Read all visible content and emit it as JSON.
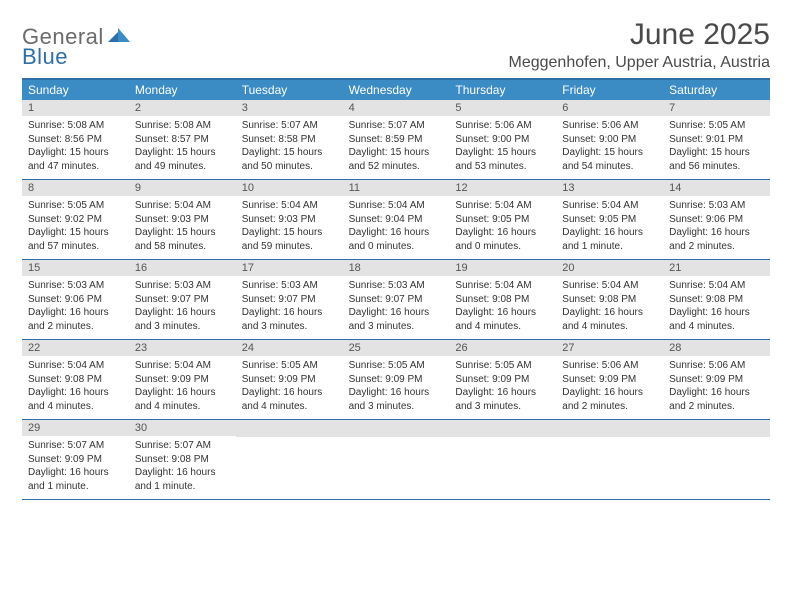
{
  "brand": {
    "word1": "General",
    "word2": "Blue"
  },
  "colors": {
    "accent": "#3b8bc4",
    "accent_dark": "#2f6fa8",
    "header_text": "#4a4a4a",
    "daynum_bg": "#e3e3e3",
    "body_text": "#333333"
  },
  "title": "June 2025",
  "location": "Meggenhofen, Upper Austria, Austria",
  "weekdays": [
    "Sunday",
    "Monday",
    "Tuesday",
    "Wednesday",
    "Thursday",
    "Friday",
    "Saturday"
  ],
  "weeks": [
    [
      {
        "n": "1",
        "sunrise": "Sunrise: 5:08 AM",
        "sunset": "Sunset: 8:56 PM",
        "day1": "Daylight: 15 hours",
        "day2": "and 47 minutes."
      },
      {
        "n": "2",
        "sunrise": "Sunrise: 5:08 AM",
        "sunset": "Sunset: 8:57 PM",
        "day1": "Daylight: 15 hours",
        "day2": "and 49 minutes."
      },
      {
        "n": "3",
        "sunrise": "Sunrise: 5:07 AM",
        "sunset": "Sunset: 8:58 PM",
        "day1": "Daylight: 15 hours",
        "day2": "and 50 minutes."
      },
      {
        "n": "4",
        "sunrise": "Sunrise: 5:07 AM",
        "sunset": "Sunset: 8:59 PM",
        "day1": "Daylight: 15 hours",
        "day2": "and 52 minutes."
      },
      {
        "n": "5",
        "sunrise": "Sunrise: 5:06 AM",
        "sunset": "Sunset: 9:00 PM",
        "day1": "Daylight: 15 hours",
        "day2": "and 53 minutes."
      },
      {
        "n": "6",
        "sunrise": "Sunrise: 5:06 AM",
        "sunset": "Sunset: 9:00 PM",
        "day1": "Daylight: 15 hours",
        "day2": "and 54 minutes."
      },
      {
        "n": "7",
        "sunrise": "Sunrise: 5:05 AM",
        "sunset": "Sunset: 9:01 PM",
        "day1": "Daylight: 15 hours",
        "day2": "and 56 minutes."
      }
    ],
    [
      {
        "n": "8",
        "sunrise": "Sunrise: 5:05 AM",
        "sunset": "Sunset: 9:02 PM",
        "day1": "Daylight: 15 hours",
        "day2": "and 57 minutes."
      },
      {
        "n": "9",
        "sunrise": "Sunrise: 5:04 AM",
        "sunset": "Sunset: 9:03 PM",
        "day1": "Daylight: 15 hours",
        "day2": "and 58 minutes."
      },
      {
        "n": "10",
        "sunrise": "Sunrise: 5:04 AM",
        "sunset": "Sunset: 9:03 PM",
        "day1": "Daylight: 15 hours",
        "day2": "and 59 minutes."
      },
      {
        "n": "11",
        "sunrise": "Sunrise: 5:04 AM",
        "sunset": "Sunset: 9:04 PM",
        "day1": "Daylight: 16 hours",
        "day2": "and 0 minutes."
      },
      {
        "n": "12",
        "sunrise": "Sunrise: 5:04 AM",
        "sunset": "Sunset: 9:05 PM",
        "day1": "Daylight: 16 hours",
        "day2": "and 0 minutes."
      },
      {
        "n": "13",
        "sunrise": "Sunrise: 5:04 AM",
        "sunset": "Sunset: 9:05 PM",
        "day1": "Daylight: 16 hours",
        "day2": "and 1 minute."
      },
      {
        "n": "14",
        "sunrise": "Sunrise: 5:03 AM",
        "sunset": "Sunset: 9:06 PM",
        "day1": "Daylight: 16 hours",
        "day2": "and 2 minutes."
      }
    ],
    [
      {
        "n": "15",
        "sunrise": "Sunrise: 5:03 AM",
        "sunset": "Sunset: 9:06 PM",
        "day1": "Daylight: 16 hours",
        "day2": "and 2 minutes."
      },
      {
        "n": "16",
        "sunrise": "Sunrise: 5:03 AM",
        "sunset": "Sunset: 9:07 PM",
        "day1": "Daylight: 16 hours",
        "day2": "and 3 minutes."
      },
      {
        "n": "17",
        "sunrise": "Sunrise: 5:03 AM",
        "sunset": "Sunset: 9:07 PM",
        "day1": "Daylight: 16 hours",
        "day2": "and 3 minutes."
      },
      {
        "n": "18",
        "sunrise": "Sunrise: 5:03 AM",
        "sunset": "Sunset: 9:07 PM",
        "day1": "Daylight: 16 hours",
        "day2": "and 3 minutes."
      },
      {
        "n": "19",
        "sunrise": "Sunrise: 5:04 AM",
        "sunset": "Sunset: 9:08 PM",
        "day1": "Daylight: 16 hours",
        "day2": "and 4 minutes."
      },
      {
        "n": "20",
        "sunrise": "Sunrise: 5:04 AM",
        "sunset": "Sunset: 9:08 PM",
        "day1": "Daylight: 16 hours",
        "day2": "and 4 minutes."
      },
      {
        "n": "21",
        "sunrise": "Sunrise: 5:04 AM",
        "sunset": "Sunset: 9:08 PM",
        "day1": "Daylight: 16 hours",
        "day2": "and 4 minutes."
      }
    ],
    [
      {
        "n": "22",
        "sunrise": "Sunrise: 5:04 AM",
        "sunset": "Sunset: 9:08 PM",
        "day1": "Daylight: 16 hours",
        "day2": "and 4 minutes."
      },
      {
        "n": "23",
        "sunrise": "Sunrise: 5:04 AM",
        "sunset": "Sunset: 9:09 PM",
        "day1": "Daylight: 16 hours",
        "day2": "and 4 minutes."
      },
      {
        "n": "24",
        "sunrise": "Sunrise: 5:05 AM",
        "sunset": "Sunset: 9:09 PM",
        "day1": "Daylight: 16 hours",
        "day2": "and 4 minutes."
      },
      {
        "n": "25",
        "sunrise": "Sunrise: 5:05 AM",
        "sunset": "Sunset: 9:09 PM",
        "day1": "Daylight: 16 hours",
        "day2": "and 3 minutes."
      },
      {
        "n": "26",
        "sunrise": "Sunrise: 5:05 AM",
        "sunset": "Sunset: 9:09 PM",
        "day1": "Daylight: 16 hours",
        "day2": "and 3 minutes."
      },
      {
        "n": "27",
        "sunrise": "Sunrise: 5:06 AM",
        "sunset": "Sunset: 9:09 PM",
        "day1": "Daylight: 16 hours",
        "day2": "and 2 minutes."
      },
      {
        "n": "28",
        "sunrise": "Sunrise: 5:06 AM",
        "sunset": "Sunset: 9:09 PM",
        "day1": "Daylight: 16 hours",
        "day2": "and 2 minutes."
      }
    ],
    [
      {
        "n": "29",
        "sunrise": "Sunrise: 5:07 AM",
        "sunset": "Sunset: 9:09 PM",
        "day1": "Daylight: 16 hours",
        "day2": "and 1 minute."
      },
      {
        "n": "30",
        "sunrise": "Sunrise: 5:07 AM",
        "sunset": "Sunset: 9:08 PM",
        "day1": "Daylight: 16 hours",
        "day2": "and 1 minute."
      },
      null,
      null,
      null,
      null,
      null
    ]
  ]
}
